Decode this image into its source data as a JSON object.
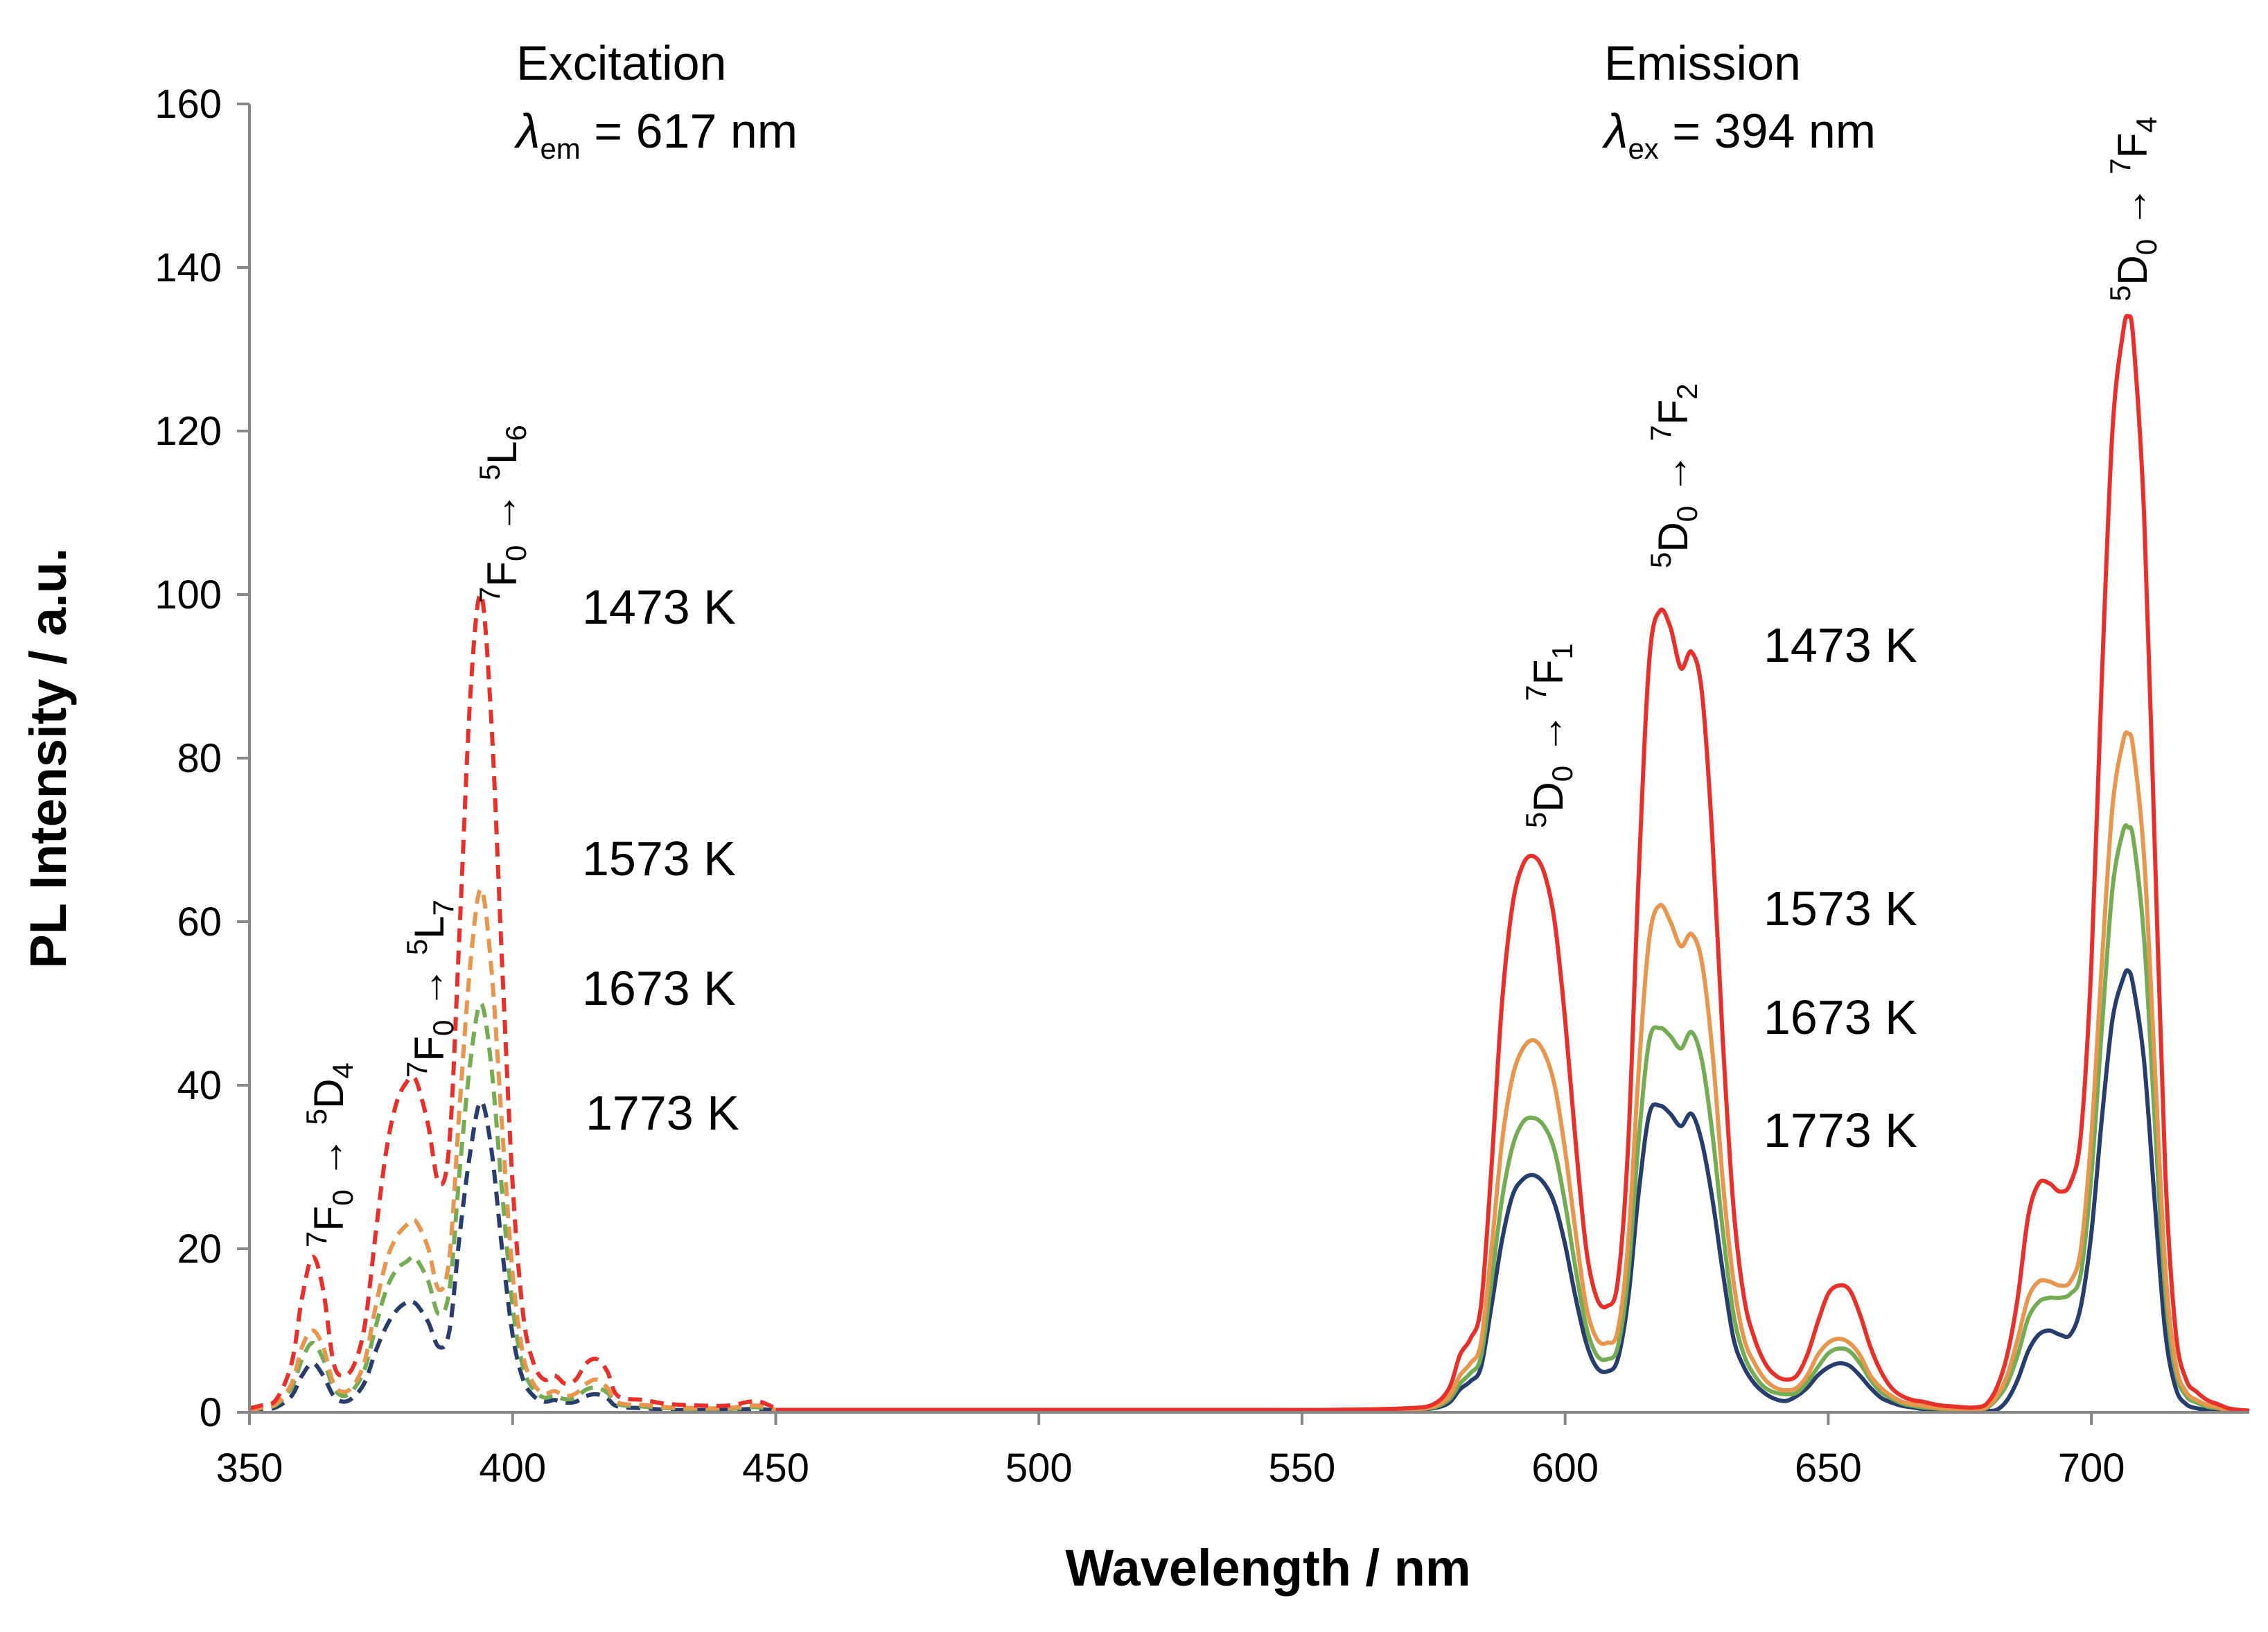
{
  "chart_data": {
    "type": "line",
    "xlabel": "Wavelength / nm",
    "ylabel": "PL Intensity / a.u.",
    "xlim": [
      350,
      730
    ],
    "ylim": [
      0,
      160
    ],
    "xticks": [
      350,
      400,
      450,
      500,
      550,
      600,
      650,
      700
    ],
    "yticks": [
      0,
      20,
      40,
      60,
      80,
      100,
      120,
      140,
      160
    ],
    "colors": {
      "1473 K": "#e8302a",
      "1573 K": "#e8954e",
      "1673 K": "#74ac54",
      "1773 K": "#263d6e"
    },
    "annotations": {
      "excitation_title": "Excitation",
      "excitation_sub_symbol": "λ",
      "excitation_sub_index": "em",
      "excitation_sub_value": " = 617 nm",
      "emission_title": "Emission",
      "emission_sub_symbol": "λ",
      "emission_sub_index": "ex",
      "emission_sub_value": " = 394 nm"
    },
    "temperature_labels_excitation": [
      "1473 K",
      "1573 K",
      "1673 K",
      "1773 K"
    ],
    "temperature_labels_emission": [
      "1473 K",
      "1573 K",
      "1673 K",
      "1773 K"
    ],
    "transitions": [
      {
        "pre": "7",
        "a": "F",
        "a_sub": "0",
        "arrow": " → ",
        "post": "5",
        "b": "D",
        "b_sub": "4"
      },
      {
        "pre": "7",
        "a": "F",
        "a_sub": "0",
        "arrow": " → ",
        "post": "5",
        "b": "L",
        "b_sub": "7"
      },
      {
        "pre": "7",
        "a": "F",
        "a_sub": "0",
        "arrow": " → ",
        "post": "5",
        "b": "L",
        "b_sub": "6"
      },
      {
        "pre": "5",
        "a": "D",
        "a_sub": "0",
        "arrow": " → ",
        "post": "7",
        "b": "F",
        "b_sub": "1"
      },
      {
        "pre": "5",
        "a": "D",
        "a_sub": "0",
        "arrow": " → ",
        "post": "7",
        "b": "F",
        "b_sub": "2"
      },
      {
        "pre": "5",
        "a": "D",
        "a_sub": "0",
        "arrow": " → ",
        "post": "7",
        "b": "F",
        "b_sub": "4"
      }
    ],
    "excitation_series": [
      {
        "name": "1473 K",
        "style": "dashed",
        "x": [
          350,
          352,
          355,
          358,
          360,
          362,
          364,
          366,
          368,
          370,
          372,
          374,
          376,
          378,
          380,
          381,
          382,
          384,
          386,
          388,
          390,
          392,
          394,
          396,
          398,
          400,
          402,
          404,
          406,
          408,
          410,
          412,
          414,
          416,
          418,
          420,
          425,
          430,
          440,
          445,
          447,
          450
        ],
        "y": [
          0.5,
          0.8,
          1.5,
          6,
          14,
          19,
          15,
          6,
          4.5,
          6,
          11,
          22,
          32,
          38,
          40.5,
          41,
          40,
          35,
          28,
          33,
          60,
          88,
          100,
          84,
          55,
          28,
          12,
          6,
          4,
          4.5,
          3.5,
          4,
          6,
          6.5,
          5,
          2,
          1.5,
          1,
          0.8,
          1.3,
          1.3,
          0.5
        ]
      },
      {
        "name": "1573 K",
        "style": "dashed",
        "x": [
          350,
          352,
          355,
          358,
          360,
          362,
          364,
          366,
          368,
          370,
          372,
          374,
          376,
          378,
          380,
          381,
          382,
          384,
          386,
          388,
          390,
          392,
          394,
          396,
          398,
          400,
          402,
          404,
          406,
          408,
          410,
          412,
          414,
          416,
          418,
          420,
          425,
          430,
          440,
          445,
          447,
          450
        ],
        "y": [
          0.3,
          0.5,
          1,
          3.5,
          8,
          10,
          8,
          3.5,
          2.5,
          3.5,
          6.5,
          13,
          18.5,
          21.5,
          23,
          23.5,
          23,
          20,
          15,
          19,
          38,
          55,
          64,
          54,
          35,
          17,
          7,
          3.5,
          2.3,
          2.6,
          2,
          2.3,
          3.5,
          4,
          3,
          1.2,
          0.9,
          0.6,
          0.5,
          0.8,
          0.8,
          0.3
        ]
      },
      {
        "name": "1673 K",
        "style": "dashed",
        "x": [
          350,
          352,
          355,
          358,
          360,
          362,
          364,
          366,
          368,
          370,
          372,
          374,
          376,
          378,
          380,
          381,
          382,
          384,
          386,
          388,
          390,
          392,
          394,
          396,
          398,
          400,
          402,
          404,
          406,
          408,
          410,
          412,
          414,
          416,
          418,
          420,
          425,
          430,
          440,
          445,
          447,
          450
        ],
        "y": [
          0.3,
          0.5,
          0.9,
          3,
          6.5,
          8.5,
          6.5,
          3,
          2,
          3,
          5.5,
          10.5,
          15,
          17.5,
          18.5,
          19,
          18.5,
          16,
          12,
          15,
          30,
          43,
          50,
          42,
          27,
          13,
          5.5,
          2.8,
          1.8,
          2,
          1.6,
          1.8,
          2.8,
          3,
          2.4,
          1,
          0.7,
          0.5,
          0.4,
          0.6,
          0.6,
          0.2
        ]
      },
      {
        "name": "1773 K",
        "style": "dashed",
        "x": [
          350,
          352,
          355,
          358,
          360,
          362,
          364,
          366,
          368,
          370,
          372,
          374,
          376,
          378,
          380,
          381,
          382,
          384,
          386,
          388,
          390,
          392,
          394,
          396,
          398,
          400,
          402,
          404,
          406,
          408,
          410,
          412,
          414,
          416,
          418,
          420,
          425,
          430,
          440,
          445,
          447,
          450
        ],
        "y": [
          0.2,
          0.3,
          0.6,
          2,
          4.5,
          6,
          4.5,
          2,
          1.3,
          2,
          3.8,
          7.5,
          10.5,
          12.5,
          13.5,
          13.5,
          13,
          11,
          8,
          10,
          22,
          32,
          38,
          32,
          20,
          9.5,
          4,
          2,
          1.3,
          1.5,
          1.2,
          1.3,
          2,
          2.2,
          1.7,
          0.7,
          0.5,
          0.3,
          0.3,
          0.4,
          0.4,
          0.2
        ]
      }
    ],
    "emission_series": [
      {
        "name": "1473 K",
        "style": "solid",
        "x": [
          450,
          540,
          555,
          570,
          575,
          578,
          580,
          582,
          584,
          586,
          588,
          590,
          592,
          594,
          596,
          598,
          600,
          602,
          604,
          606,
          608,
          610,
          612,
          614,
          616,
          618,
          620,
          622,
          624,
          626,
          628,
          630,
          632,
          634,
          636,
          638,
          640,
          642,
          644,
          646,
          648,
          650,
          652,
          654,
          656,
          658,
          660,
          662,
          664,
          666,
          668,
          670,
          672,
          674,
          676,
          678,
          680,
          682,
          684,
          686,
          688,
          690,
          692,
          694,
          696,
          698,
          700,
          702,
          704,
          706,
          707,
          708,
          710,
          712,
          714,
          716,
          718,
          720,
          722,
          724,
          726,
          728,
          730
        ],
        "y": [
          0.3,
          0.3,
          0.3,
          0.5,
          1,
          3,
          7,
          9,
          13,
          30,
          50,
          62,
          67,
          68,
          66,
          60,
          48,
          33,
          20,
          14,
          13,
          16,
          33,
          66,
          92,
          98,
          96,
          91,
          93,
          88,
          70,
          45,
          25,
          14,
          9,
          6,
          4.5,
          4,
          4.5,
          7,
          11,
          14.5,
          15.5,
          15,
          12,
          8,
          5,
          3,
          2,
          1.5,
          1.3,
          1,
          0.8,
          0.7,
          0.6,
          0.6,
          1,
          3,
          7,
          14,
          24,
          28,
          28,
          27,
          28,
          34,
          55,
          90,
          120,
          132,
          134,
          131,
          110,
          70,
          30,
          10,
          4,
          2.5,
          1.5,
          1,
          0.5,
          0.3,
          0.2
        ]
      },
      {
        "name": "1573 K",
        "style": "solid",
        "x": [
          450,
          540,
          555,
          570,
          575,
          578,
          580,
          582,
          584,
          586,
          588,
          590,
          592,
          594,
          596,
          598,
          600,
          602,
          604,
          606,
          608,
          610,
          612,
          614,
          616,
          618,
          620,
          622,
          624,
          626,
          628,
          630,
          632,
          634,
          636,
          638,
          640,
          642,
          644,
          646,
          648,
          650,
          652,
          654,
          656,
          658,
          660,
          662,
          664,
          666,
          668,
          670,
          672,
          674,
          676,
          678,
          680,
          682,
          684,
          686,
          688,
          690,
          692,
          694,
          696,
          698,
          700,
          702,
          704,
          706,
          707,
          708,
          710,
          712,
          714,
          716,
          718,
          720,
          722,
          724,
          726,
          728,
          730
        ],
        "y": [
          0.3,
          0.3,
          0.3,
          0.4,
          0.7,
          2,
          4.5,
          6,
          8.5,
          20,
          33,
          41,
          44.5,
          45.5,
          44,
          40,
          32,
          22,
          13,
          9,
          8.5,
          10,
          21,
          42,
          58,
          62,
          60,
          57,
          58.5,
          55,
          44,
          28,
          16,
          9,
          6,
          4,
          3,
          2.7,
          3,
          4.5,
          7,
          8.5,
          9,
          8.5,
          7,
          4.5,
          3,
          2,
          1.3,
          1,
          0.8,
          0.6,
          0.5,
          0.4,
          0.4,
          0.4,
          0.6,
          2,
          4.5,
          9,
          14,
          16,
          16,
          15.5,
          16,
          20,
          34,
          55,
          74,
          82,
          83,
          81,
          68,
          43,
          18,
          6,
          2.5,
          1.5,
          0.9,
          0.6,
          0.3,
          0.2,
          0.1
        ]
      },
      {
        "name": "1673 K",
        "style": "solid",
        "x": [
          450,
          540,
          555,
          570,
          575,
          578,
          580,
          582,
          584,
          586,
          588,
          590,
          592,
          594,
          596,
          598,
          600,
          602,
          604,
          606,
          608,
          610,
          612,
          614,
          616,
          618,
          620,
          622,
          624,
          626,
          628,
          630,
          632,
          634,
          636,
          638,
          640,
          642,
          644,
          646,
          648,
          650,
          652,
          654,
          656,
          658,
          660,
          662,
          664,
          666,
          668,
          670,
          672,
          674,
          676,
          678,
          680,
          682,
          684,
          686,
          688,
          690,
          692,
          694,
          696,
          698,
          700,
          702,
          704,
          706,
          707,
          708,
          710,
          712,
          714,
          716,
          718,
          720,
          722,
          724,
          726,
          728,
          730
        ],
        "y": [
          0.3,
          0.3,
          0.3,
          0.4,
          0.6,
          1.6,
          3.5,
          4.8,
          6.8,
          16,
          26,
          32.5,
          35.5,
          36,
          35,
          32,
          25.5,
          17.5,
          10.5,
          7,
          6.5,
          8,
          17,
          33.5,
          45.5,
          47,
          46,
          44.5,
          46.5,
          43,
          34,
          22,
          12,
          7,
          4.5,
          3,
          2.4,
          2.2,
          2.4,
          3.7,
          5.5,
          7.2,
          7.8,
          7.5,
          6,
          4,
          2.5,
          1.7,
          1.1,
          0.8,
          0.6,
          0.5,
          0.4,
          0.3,
          0.3,
          0.3,
          0.5,
          1.6,
          3.5,
          7,
          11.5,
          13.5,
          14,
          14,
          14.5,
          17,
          29,
          47,
          64,
          71,
          71.5,
          70,
          58,
          36,
          15,
          5,
          2,
          1.2,
          0.7,
          0.5,
          0.3,
          0.2,
          0.1
        ]
      },
      {
        "name": "1773 K",
        "style": "solid",
        "x": [
          450,
          540,
          555,
          570,
          575,
          578,
          580,
          582,
          584,
          586,
          588,
          590,
          592,
          594,
          596,
          598,
          600,
          602,
          604,
          606,
          608,
          610,
          612,
          614,
          616,
          618,
          620,
          622,
          624,
          626,
          628,
          630,
          632,
          634,
          636,
          638,
          640,
          642,
          644,
          646,
          648,
          650,
          652,
          654,
          656,
          658,
          660,
          662,
          664,
          666,
          668,
          670,
          672,
          674,
          676,
          678,
          680,
          682,
          684,
          686,
          688,
          690,
          692,
          694,
          696,
          698,
          700,
          702,
          704,
          706,
          707,
          708,
          710,
          712,
          714,
          716,
          718,
          720,
          722,
          724,
          726,
          728,
          730
        ],
        "y": [
          0.2,
          0.2,
          0.2,
          0.3,
          0.5,
          1.2,
          2.8,
          3.8,
          5.5,
          13,
          21,
          26.5,
          28.5,
          29,
          28,
          25.5,
          20.5,
          14,
          8.5,
          5.5,
          5,
          6.5,
          14,
          27,
          36.5,
          37.5,
          36.5,
          35,
          36.5,
          33,
          26,
          17,
          9,
          5.5,
          3.5,
          2.3,
          1.6,
          1.4,
          2,
          3,
          4.5,
          5.5,
          6,
          5.7,
          4.5,
          3,
          1.8,
          1.2,
          0.8,
          0.6,
          0.4,
          0.3,
          0.3,
          0.2,
          0.2,
          0.2,
          0.2,
          0.3,
          1.5,
          4,
          7.5,
          9.5,
          10,
          9.5,
          9.5,
          13,
          22,
          36,
          48,
          53,
          54,
          52,
          43,
          26,
          10,
          3,
          1,
          0.5,
          0.3,
          0.2,
          0.1,
          0.1,
          0.1
        ]
      }
    ]
  }
}
